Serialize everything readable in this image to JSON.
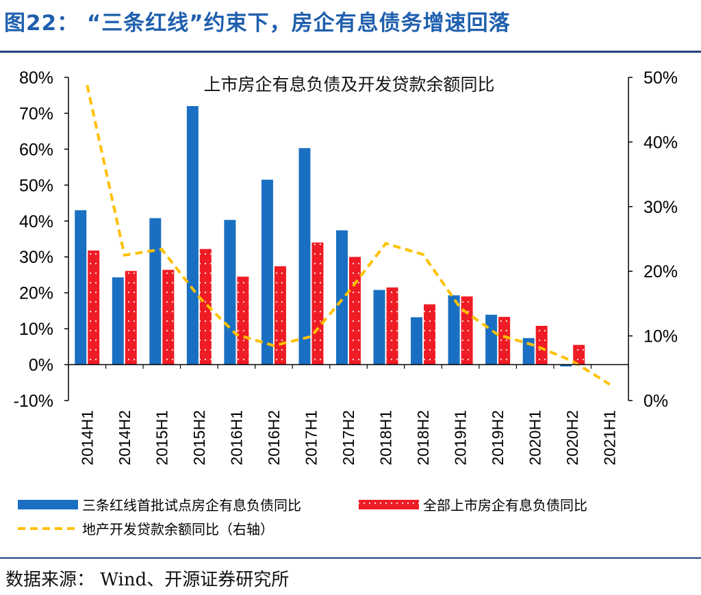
{
  "figure": {
    "title": "图22：   “三条红线”约束下，房企有息债务增速回落",
    "source": "数据来源：  Wind、开源证券研究所"
  },
  "chart_data": {
    "type": "bar",
    "title": "上市房企有息负债及开发贷款余额同比",
    "categories": [
      "2014H1",
      "2014H2",
      "2015H1",
      "2015H2",
      "2016H1",
      "2016H2",
      "2017H1",
      "2017H2",
      "2018H1",
      "2018H2",
      "2019H1",
      "2019H2",
      "2020H1",
      "2020H2",
      "2021H1"
    ],
    "left_axis": {
      "min": -0.1,
      "max": 0.8,
      "ticks": [
        "-10%",
        "0%",
        "10%",
        "20%",
        "30%",
        "40%",
        "50%",
        "60%",
        "70%",
        "80%"
      ]
    },
    "right_axis": {
      "min": 0.0,
      "max": 0.5,
      "ticks": [
        "0%",
        "10%",
        "20%",
        "30%",
        "40%",
        "50%"
      ]
    },
    "series": [
      {
        "name": "三条红线首批试点房企有息负债同比",
        "type": "bar",
        "axis": "left",
        "color": "#1a6fc2",
        "values": [
          0.43,
          0.243,
          0.408,
          0.72,
          0.403,
          0.515,
          0.603,
          0.374,
          0.208,
          0.132,
          0.193,
          0.139,
          0.074,
          -0.005,
          null
        ]
      },
      {
        "name": "全部上市房企有息负债同比",
        "type": "bar",
        "axis": "left",
        "color": "#ee1c25",
        "values": [
          0.318,
          0.261,
          0.264,
          0.322,
          0.245,
          0.274,
          0.34,
          0.3,
          0.215,
          0.168,
          0.19,
          0.133,
          0.108,
          0.055,
          null
        ]
      },
      {
        "name": "地产开发贷款余额同比（右轴）",
        "type": "line",
        "axis": "right",
        "color": "#ffc000",
        "values": [
          0.488,
          0.225,
          0.234,
          0.16,
          0.102,
          0.085,
          0.099,
          0.168,
          0.243,
          0.226,
          0.143,
          0.102,
          0.085,
          0.061,
          0.025
        ]
      }
    ],
    "legend_position": "bottom"
  }
}
